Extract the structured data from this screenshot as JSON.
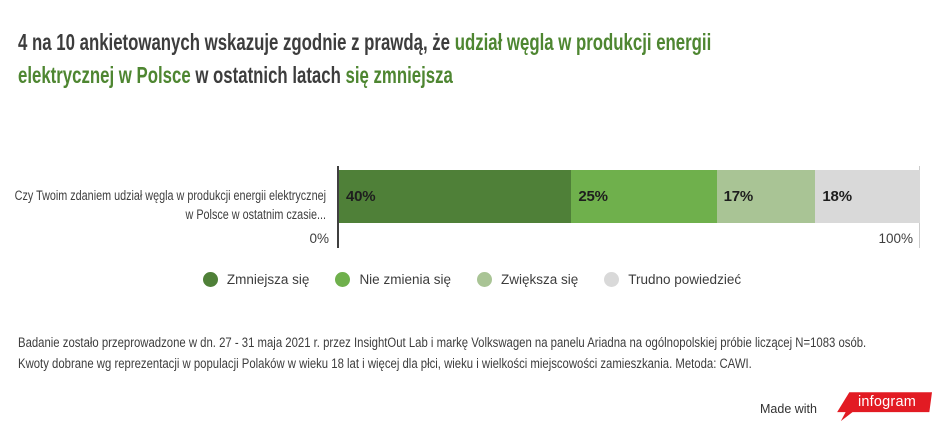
{
  "title": {
    "parts": [
      {
        "text": "4 na 10 ankietowanych wskazuje zgodnie z prawdą, że ",
        "accent": false
      },
      {
        "text": "udział węgla w produkcji energii elektrycznej w Polsce",
        "accent": true
      },
      {
        "text": " w ostatnich latach ",
        "accent": false
      },
      {
        "text": "się zmniejsza",
        "accent": true
      }
    ],
    "text_color": "#3d3d3d",
    "accent_color": "#4e8631"
  },
  "chart_data": {
    "type": "bar",
    "orientation": "horizontal",
    "stacked": true,
    "question": "Czy Twoim zdaniem udział węgla w produkcji energii elektrycznej w Polsce w ostatnim czasie...",
    "categories": [
      "Zmniejsza się",
      "Nie zmienia się",
      "Zwiększa się",
      "Trudno powiedzieć"
    ],
    "values": [
      40,
      25,
      17,
      18
    ],
    "value_labels": [
      "40%",
      "25%",
      "17%",
      "18%"
    ],
    "colors": [
      "#4f8038",
      "#6fb04c",
      "#a9c495",
      "#d9d9d9"
    ],
    "axis": {
      "min": 0,
      "max": 100,
      "min_label": "0%",
      "max_label": "100%"
    },
    "legend_position": "bottom-center",
    "grid": false
  },
  "footer": {
    "line1": "Badanie zostało przeprowadzone w dn. 27 - 31 maja 2021 r. przez InsightOut Lab i markę Volkswagen na panelu Ariadna na ogólnopolskiej próbie liczącej N=1083 osób.",
    "line2": "Kwoty dobrane wg reprezentacji w populacji Polaków w wieku 18 lat i więcej dla płci, wieku i wielkości miejscowości zamieszkania. Metoda: CAWI."
  },
  "made_with": {
    "label": "Made with",
    "brand": "infogram",
    "brand_color": "#e21b23"
  }
}
